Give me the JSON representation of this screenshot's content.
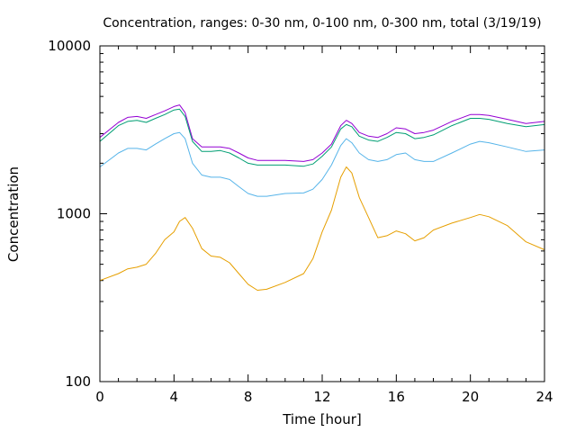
{
  "chart_data": {
    "type": "line",
    "title": "Concentration, ranges: 0-30 nm, 0-100 nm, 0-300 nm, total (3/19/19)",
    "xlabel": "Time [hour]",
    "ylabel": "Concentration",
    "xlim": [
      0,
      24
    ],
    "ylim": [
      100,
      10000
    ],
    "y_scale": "log",
    "grid": false,
    "legend": "none",
    "x_ticks": [
      0,
      4,
      8,
      12,
      16,
      20,
      24
    ],
    "x_tick_labels": [
      "0",
      "4",
      "8",
      "12",
      "16",
      "20",
      "24"
    ],
    "y_ticks": [
      100,
      1000,
      10000
    ],
    "y_tick_labels": [
      "100",
      "1000",
      "10000"
    ],
    "x": [
      0,
      1,
      1.5,
      2,
      2.5,
      3,
      3.5,
      4,
      4.3,
      4.6,
      5,
      5.5,
      6,
      6.5,
      7,
      7.5,
      8,
      8.5,
      9,
      10,
      11,
      11.5,
      12,
      12.5,
      13,
      13.3,
      13.6,
      14,
      14.5,
      15,
      15.5,
      16,
      16.5,
      17,
      17.5,
      18,
      19,
      20,
      20.5,
      21,
      22,
      23,
      24
    ],
    "series": [
      {
        "color": "#9400d3",
        "values": [
          2850,
          3500,
          3750,
          3800,
          3700,
          3900,
          4100,
          4350,
          4450,
          4000,
          2800,
          2500,
          2500,
          2500,
          2450,
          2300,
          2150,
          2080,
          2080,
          2080,
          2050,
          2100,
          2300,
          2600,
          3350,
          3600,
          3450,
          3050,
          2900,
          2850,
          3000,
          3250,
          3200,
          3000,
          3050,
          3150,
          3550,
          3900,
          3900,
          3850,
          3650,
          3450,
          3550
        ]
      },
      {
        "color": "#009e73",
        "values": [
          2700,
          3350,
          3550,
          3600,
          3500,
          3700,
          3900,
          4150,
          4200,
          3800,
          2700,
          2350,
          2350,
          2380,
          2300,
          2150,
          2000,
          1950,
          1950,
          1950,
          1920,
          1980,
          2200,
          2500,
          3200,
          3400,
          3300,
          2900,
          2750,
          2700,
          2850,
          3050,
          3000,
          2800,
          2850,
          2950,
          3350,
          3700,
          3700,
          3650,
          3450,
          3300,
          3400
        ]
      },
      {
        "color": "#56b4e9",
        "values": [
          1900,
          2300,
          2450,
          2450,
          2400,
          2600,
          2800,
          3000,
          3050,
          2800,
          2000,
          1700,
          1650,
          1650,
          1600,
          1450,
          1320,
          1270,
          1270,
          1320,
          1330,
          1400,
          1600,
          1950,
          2550,
          2800,
          2650,
          2300,
          2100,
          2050,
          2100,
          2250,
          2300,
          2100,
          2050,
          2050,
          2300,
          2600,
          2700,
          2650,
          2500,
          2350,
          2400
        ]
      },
      {
        "color": "#e69f00",
        "values": [
          400,
          440,
          470,
          480,
          500,
          580,
          700,
          780,
          900,
          950,
          820,
          620,
          560,
          550,
          510,
          440,
          380,
          350,
          355,
          390,
          440,
          540,
          780,
          1050,
          1650,
          1900,
          1750,
          1250,
          950,
          720,
          740,
          790,
          760,
          690,
          720,
          800,
          880,
          950,
          990,
          960,
          850,
          680,
          610
        ]
      }
    ]
  }
}
